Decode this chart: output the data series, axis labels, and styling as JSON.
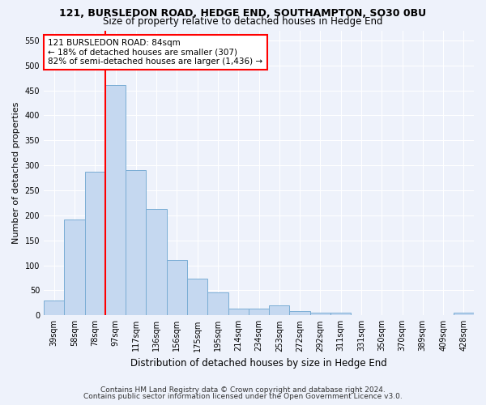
{
  "title_line1": "121, BURSLEDON ROAD, HEDGE END, SOUTHAMPTON, SO30 0BU",
  "title_line2": "Size of property relative to detached houses in Hedge End",
  "xlabel": "Distribution of detached houses by size in Hedge End",
  "ylabel": "Number of detached properties",
  "categories": [
    "39sqm",
    "58sqm",
    "78sqm",
    "97sqm",
    "117sqm",
    "136sqm",
    "156sqm",
    "175sqm",
    "195sqm",
    "214sqm",
    "234sqm",
    "253sqm",
    "272sqm",
    "292sqm",
    "311sqm",
    "331sqm",
    "350sqm",
    "370sqm",
    "389sqm",
    "409sqm",
    "428sqm"
  ],
  "values": [
    30,
    192,
    287,
    460,
    290,
    213,
    110,
    74,
    46,
    13,
    13,
    20,
    8,
    6,
    5,
    0,
    0,
    0,
    0,
    0,
    5
  ],
  "bar_color": "#c5d8f0",
  "bar_edge_color": "#7aadd4",
  "vline_x_index": 2.5,
  "vline_color": "red",
  "annotation_text": "121 BURSLEDON ROAD: 84sqm\n← 18% of detached houses are smaller (307)\n82% of semi-detached houses are larger (1,436) →",
  "annotation_box_color": "white",
  "annotation_box_edge_color": "red",
  "ylim": [
    0,
    570
  ],
  "yticks": [
    0,
    50,
    100,
    150,
    200,
    250,
    300,
    350,
    400,
    450,
    500,
    550
  ],
  "footnote1": "Contains HM Land Registry data © Crown copyright and database right 2024.",
  "footnote2": "Contains public sector information licensed under the Open Government Licence v3.0.",
  "bg_color": "#eef2fb",
  "grid_color": "#ffffff",
  "title1_fontsize": 9,
  "title2_fontsize": 8.5,
  "ylabel_fontsize": 8,
  "xlabel_fontsize": 8.5,
  "tick_fontsize": 7,
  "annot_fontsize": 7.5,
  "footnote_fontsize": 6.5
}
